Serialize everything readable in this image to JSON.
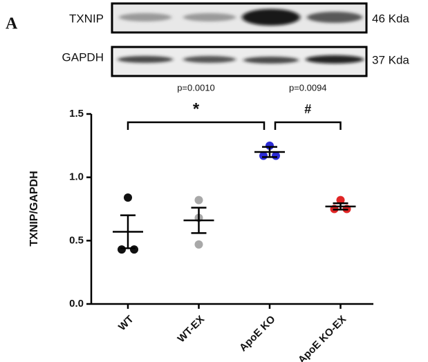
{
  "panel_label": "A",
  "blot": {
    "rows": [
      {
        "label": "TXNIP",
        "size": "46 Kda"
      },
      {
        "label": "GAPDH",
        "size": "37 Kda"
      }
    ]
  },
  "chart_data": {
    "type": "dotplot",
    "ylabel": "TXNIP/GAPDH",
    "categories": [
      "WT",
      "WT-EX",
      "ApoE KO",
      "ApoE KO-EX"
    ],
    "groups": [
      {
        "color": "#111111",
        "values": [
          0.84,
          0.43,
          0.43
        ],
        "mean": 0.57,
        "sem": 0.13
      },
      {
        "color": "#a8a8a8",
        "values": [
          0.82,
          0.68,
          0.47
        ],
        "mean": 0.66,
        "sem": 0.1
      },
      {
        "color": "#2b2bd6",
        "values": [
          1.25,
          1.17,
          1.17
        ],
        "mean": 1.2,
        "sem": 0.04
      },
      {
        "color": "#e02525",
        "values": [
          0.82,
          0.75,
          0.75
        ],
        "mean": 0.77,
        "sem": 0.025
      }
    ],
    "comparisons": [
      {
        "pair": [
          "WT",
          "ApoE KO"
        ],
        "symbol": "*",
        "p_label": "p=0.0010"
      },
      {
        "pair": [
          "ApoE KO",
          "ApoE KO-EX"
        ],
        "symbol": "#",
        "p_label": "p=0.0094"
      }
    ],
    "ylim": [
      0,
      1.5
    ],
    "yticks": [
      {
        "value": 0,
        "label": "0.0"
      },
      0.5,
      {
        "value": 1,
        "label": "1.0"
      },
      1.5
    ]
  }
}
